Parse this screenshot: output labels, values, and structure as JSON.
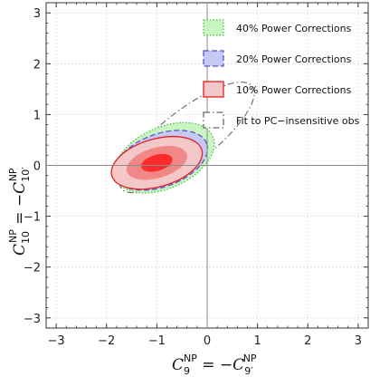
{
  "chart_data": {
    "type": "contour",
    "xlim": [
      -3.2,
      3.2
    ],
    "ylim": [
      -3.2,
      3.2
    ],
    "x_ticks": [
      "−3",
      "−2",
      "−1",
      "0",
      "1",
      "2",
      "3"
    ],
    "y_ticks": [
      "−3",
      "−2",
      "−1",
      "0",
      "1",
      "2",
      "3"
    ],
    "xlabel": {
      "main": "C",
      "sub": "9",
      "sup": "NP",
      "rest": " = −C",
      "sub2": "9′",
      "sup2": "NP"
    },
    "ylabel": {
      "main": "C",
      "sub": "10",
      "sup": "NP",
      "rest": " = −C",
      "sub2": "10′",
      "sup2": "NP"
    },
    "grid": true,
    "grid_style": "dotted",
    "legend_position": "top-right",
    "series": [
      {
        "name": "40% Power Corrections",
        "fill": "#c8f5c0",
        "stroke": "#4cc24c",
        "dash": "dotted",
        "center": [
          -0.85,
          0.15
        ],
        "rx": 1.05,
        "ry": 0.6,
        "angle_deg": 24
      },
      {
        "name": "20% Power Corrections",
        "fill": "#c8c8f4",
        "stroke": "#5858cc",
        "dash": "dashed",
        "center": [
          -0.92,
          0.1
        ],
        "rx": 0.97,
        "ry": 0.52,
        "angle_deg": 20
      },
      {
        "name": "10% Power Corrections",
        "fill": "#f4c8c8",
        "stroke": "#dd2222",
        "dash": "solid",
        "center": [
          -1.0,
          0.05
        ],
        "rx": 0.93,
        "ry": 0.47,
        "angle_deg": 16,
        "inner_levels": [
          {
            "fill": "#f08888",
            "rx": 0.62,
            "ry": 0.3
          },
          {
            "fill": "#ff2b2b",
            "rx": 0.32,
            "ry": 0.16
          }
        ]
      },
      {
        "name": "Fit to PC−insensitive obs",
        "fill": "none",
        "stroke": "#666666",
        "dash": "dashdot",
        "center": [
          -0.4,
          0.55
        ],
        "rx": 1.65,
        "ry": 0.52,
        "angle_deg": 38
      }
    ]
  }
}
